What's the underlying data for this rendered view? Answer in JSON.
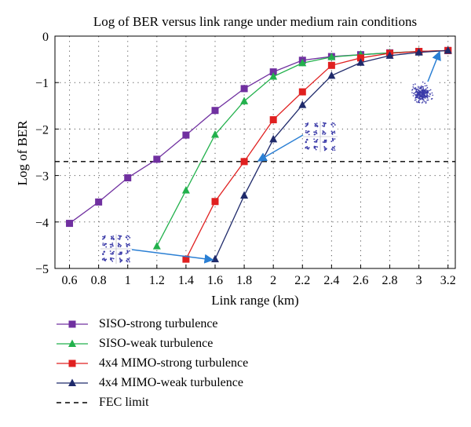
{
  "chart_data": {
    "type": "line",
    "title": "Log of BER versus link range under medium rain conditions",
    "xlabel": "Link range (km)",
    "ylabel": "Log of BER",
    "xlim": [
      0.5,
      3.25
    ],
    "ylim": [
      -5,
      0
    ],
    "xticks": [
      "0.6",
      "0.8",
      "1",
      "1.2",
      "1.4",
      "1.6",
      "1.8",
      "2",
      "2.2",
      "2.4",
      "2.6",
      "2.8",
      "3",
      "3.2"
    ],
    "yticks": [
      "0",
      "−1",
      "−2",
      "−3",
      "−4",
      "−5"
    ],
    "grid": "dotted",
    "legend_position": "below",
    "series": [
      {
        "name": "SISO-strong turbulence",
        "color": "#7030a0",
        "marker": "square",
        "x": [
          0.6,
          0.8,
          1.0,
          1.2,
          1.4,
          1.6,
          1.8,
          2.0,
          2.2,
          2.4,
          2.6,
          2.8,
          3.0,
          3.2
        ],
        "y": [
          -4.03,
          -3.57,
          -3.05,
          -2.65,
          -2.13,
          -1.6,
          -1.13,
          -0.77,
          -0.52,
          -0.44,
          -0.4,
          -0.36,
          -0.33,
          -0.31
        ]
      },
      {
        "name": "SISO-weak turbulence",
        "color": "#22b14c",
        "marker": "triangle",
        "x": [
          1.2,
          1.4,
          1.6,
          1.8,
          2.0,
          2.2,
          2.4,
          2.6,
          2.8,
          3.0,
          3.2
        ],
        "y": [
          -4.52,
          -3.32,
          -2.12,
          -1.4,
          -0.87,
          -0.58,
          -0.45,
          -0.4,
          -0.36,
          -0.33,
          -0.31
        ]
      },
      {
        "name": "4x4 MIMO-strong turbulence",
        "color": "#e02020",
        "marker": "square",
        "x": [
          1.4,
          1.6,
          1.8,
          2.0,
          2.2,
          2.4,
          2.6,
          2.8,
          3.0,
          3.2
        ],
        "y": [
          -4.8,
          -3.56,
          -2.7,
          -1.8,
          -1.2,
          -0.63,
          -0.47,
          -0.37,
          -0.33,
          -0.31
        ]
      },
      {
        "name": "4x4 MIMO-weak turbulence",
        "color": "#1f2a6b",
        "marker": "triangle",
        "x": [
          1.6,
          1.8,
          2.0,
          2.2,
          2.4,
          2.6,
          2.8,
          3.0,
          3.2
        ],
        "y": [
          -4.8,
          -3.43,
          -2.22,
          -1.48,
          -0.85,
          -0.57,
          -0.42,
          -0.35,
          -0.31
        ]
      },
      {
        "name": "FEC limit",
        "color": "#000000",
        "style": "dashed",
        "y_constant": -2.7
      }
    ]
  }
}
